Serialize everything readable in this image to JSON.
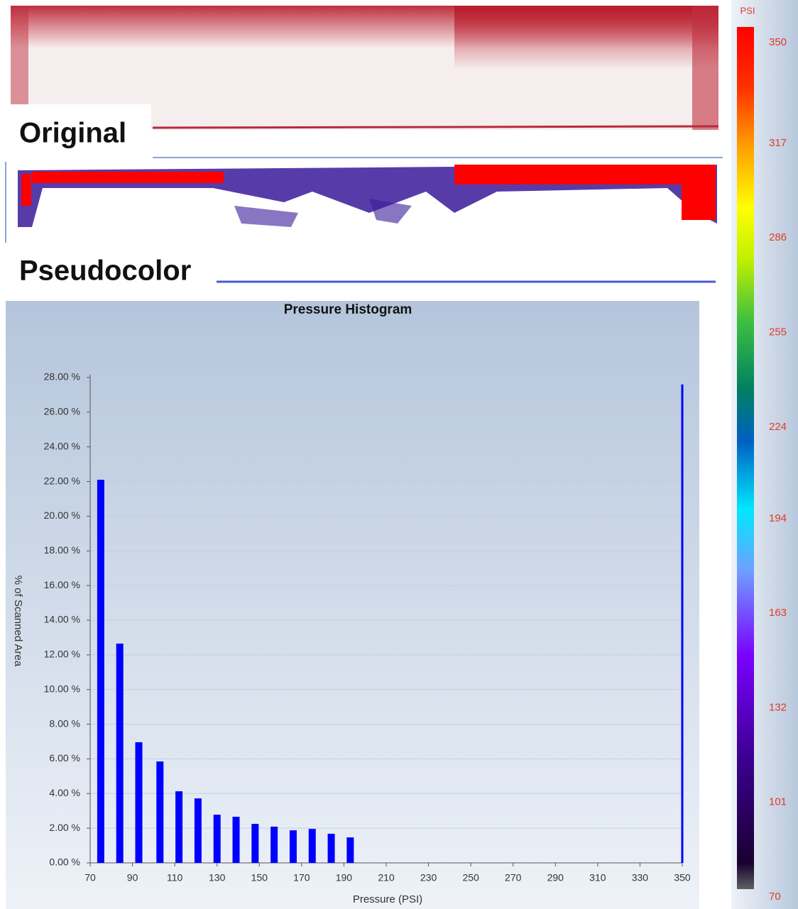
{
  "images": {
    "original": "Original",
    "pseudocolor": "Pseudocolor"
  },
  "colorbar": {
    "title": "PSI",
    "lim": [
      70,
      350
    ],
    "ticks": [
      350,
      317,
      286,
      255,
      224,
      194,
      163,
      132,
      101,
      70
    ]
  },
  "chart_data": {
    "type": "bar",
    "title": "Pressure Histogram",
    "xlabel": "Pressure (PSI)",
    "ylabel": "% of Scanned Area",
    "x": [
      75,
      84,
      93,
      103,
      112,
      121,
      130,
      139,
      148,
      157,
      166,
      175,
      184,
      193,
      350
    ],
    "values": [
      22.1,
      12.65,
      6.96,
      5.85,
      4.13,
      3.72,
      2.78,
      2.66,
      2.25,
      2.09,
      1.88,
      1.96,
      1.68,
      1.47,
      27.6
    ],
    "color": "#0000ff",
    "xlim": [
      70,
      350
    ],
    "xticks": [
      70,
      90,
      110,
      130,
      150,
      170,
      190,
      210,
      230,
      250,
      270,
      290,
      310,
      330,
      350
    ],
    "ylim": [
      0,
      28
    ],
    "yticks": [
      {
        "value": 0,
        "label": "0.00 %"
      },
      {
        "value": 2,
        "label": "2.00 %"
      },
      {
        "value": 4,
        "label": "4.00 %"
      },
      {
        "value": 6,
        "label": "6.00 %"
      },
      {
        "value": 8,
        "label": "8.00 %"
      },
      {
        "value": 10,
        "label": "10.00 %"
      },
      {
        "value": 12,
        "label": "12.00 %"
      },
      {
        "value": 14,
        "label": "14.00 %"
      },
      {
        "value": 16,
        "label": "16.00 %"
      },
      {
        "value": 18,
        "label": "18.00 %"
      },
      {
        "value": 20,
        "label": "20.00 %"
      },
      {
        "value": 22,
        "label": "22.00 %"
      },
      {
        "value": 24,
        "label": "24.00 %"
      },
      {
        "value": 26,
        "label": "26.00 %"
      },
      {
        "value": 28,
        "label": "28.00 %"
      }
    ],
    "grid": true
  }
}
